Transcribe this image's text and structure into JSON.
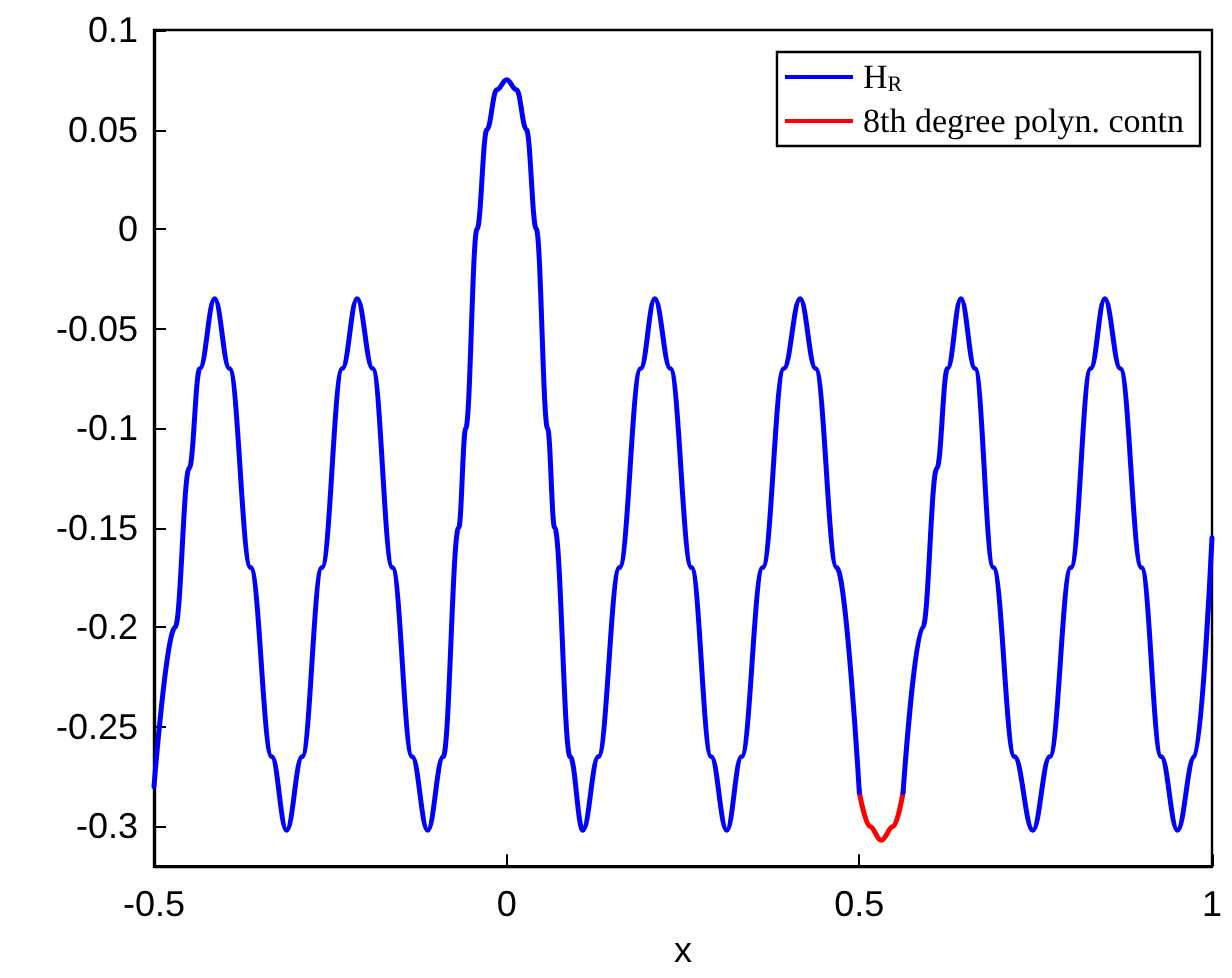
{
  "chart_data": {
    "type": "line",
    "xlabel": "x",
    "xlim": [
      -0.5,
      1
    ],
    "xticks": [
      -0.5,
      0,
      0.5,
      1
    ],
    "ylim": [
      -0.32,
      0.1
    ],
    "yticks": [
      -0.3,
      -0.25,
      -0.2,
      -0.15,
      -0.1,
      -0.05,
      0,
      0.05,
      0.1
    ],
    "grid": false,
    "legend": "top right",
    "marker": "none",
    "line_style": "solid",
    "series": [
      {
        "name": "8th degree polyn. contn",
        "color": "#ff0000",
        "x": [
          0.5,
          0.515,
          0.531,
          0.548,
          0.562
        ],
        "values": [
          -0.283,
          -0.3,
          -0.307,
          -0.3,
          -0.283
        ]
      },
      {
        "name": "H$_{R}$",
        "color": "#0000ff",
        "x": [
          -0.5,
          -0.47,
          -0.45,
          -0.435,
          -0.414,
          -0.393,
          -0.363,
          -0.333,
          -0.312,
          -0.29,
          -0.262,
          -0.233,
          -0.212,
          -0.19,
          -0.162,
          -0.134,
          -0.112,
          -0.09,
          -0.068,
          -0.058,
          -0.042,
          -0.028,
          -0.014,
          0,
          0.014,
          0.028,
          0.042,
          0.058,
          0.068,
          0.09,
          0.108,
          0.13,
          0.16,
          0.19,
          0.21,
          0.232,
          0.262,
          0.29,
          0.312,
          0.333,
          0.363,
          0.393,
          0.416,
          0.438,
          0.468,
          0.5,
          0.531,
          0.562,
          0.59,
          0.61,
          0.625,
          0.644,
          0.664,
          0.69,
          0.72,
          0.746,
          0.77,
          0.8,
          0.828,
          0.848,
          0.87,
          0.9,
          0.928,
          0.951,
          0.975,
          1.0
        ],
        "values": [
          -0.28,
          -0.2,
          -0.12,
          -0.07,
          -0.035,
          -0.07,
          -0.17,
          -0.265,
          -0.302,
          -0.265,
          -0.17,
          -0.07,
          -0.035,
          -0.07,
          -0.17,
          -0.265,
          -0.302,
          -0.265,
          -0.15,
          -0.1,
          0,
          0.05,
          0.07,
          0.075,
          0.07,
          0.05,
          0,
          -0.1,
          -0.15,
          -0.265,
          -0.302,
          -0.265,
          -0.17,
          -0.07,
          -0.035,
          -0.07,
          -0.17,
          -0.265,
          -0.302,
          -0.265,
          -0.17,
          -0.07,
          -0.035,
          -0.07,
          -0.17,
          -0.283,
          null,
          -0.283,
          -0.2,
          -0.12,
          -0.07,
          -0.035,
          -0.07,
          -0.17,
          -0.265,
          -0.302,
          -0.265,
          -0.17,
          -0.07,
          -0.035,
          -0.07,
          -0.17,
          -0.265,
          -0.302,
          -0.265,
          -0.155
        ]
      }
    ]
  }
}
